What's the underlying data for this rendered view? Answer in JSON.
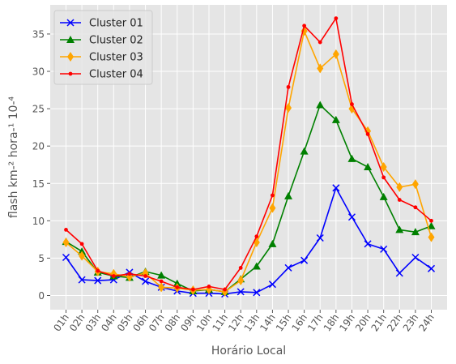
{
  "chart_data": {
    "type": "line",
    "xlabel": "Horário Local",
    "ylabel": "flash km-² hora-¹ 10-⁴",
    "categories": [
      "01h",
      "02h",
      "03h",
      "04h",
      "05h",
      "06h",
      "07h",
      "08h",
      "09h",
      "10h",
      "11h",
      "12h",
      "13h",
      "14h",
      "15h",
      "16h",
      "17h",
      "18h",
      "19h",
      "20h",
      "21h",
      "22h",
      "23h",
      "24h"
    ],
    "ylim": [
      -1.9,
      38.9
    ],
    "yticks": [
      0,
      5,
      10,
      15,
      20,
      25,
      30,
      35
    ],
    "grid": true,
    "legend_position": "top-left",
    "series": [
      {
        "name": "Cluster 01",
        "color": "#0000ff",
        "marker": "x",
        "values": [
          5.1,
          2.1,
          2.0,
          2.1,
          3.1,
          1.9,
          1.1,
          0.6,
          0.3,
          0.3,
          0.2,
          0.5,
          0.4,
          1.5,
          3.7,
          4.7,
          7.7,
          14.4,
          10.5,
          6.9,
          6.2,
          3.0,
          5.1,
          3.6
        ]
      },
      {
        "name": "Cluster 02",
        "color": "#008000",
        "marker": "triangle",
        "values": [
          7.2,
          5.9,
          3.1,
          2.6,
          2.4,
          3.2,
          2.7,
          1.6,
          0.6,
          0.8,
          0.5,
          2.2,
          3.9,
          6.9,
          13.3,
          19.3,
          25.5,
          23.5,
          18.3,
          17.2,
          13.2,
          8.8,
          8.5,
          9.3
        ]
      },
      {
        "name": "Cluster 03",
        "color": "#ffa500",
        "marker": "thin-diamond",
        "values": [
          7.1,
          5.3,
          3.2,
          2.9,
          2.5,
          3.0,
          1.1,
          1.0,
          0.7,
          0.8,
          0.5,
          2.0,
          7.1,
          11.7,
          25.1,
          35.4,
          30.4,
          32.3,
          25.0,
          22.0,
          17.2,
          14.5,
          14.9,
          7.8
        ]
      },
      {
        "name": "Cluster 04",
        "color": "#ff0000",
        "marker": "point",
        "values": [
          8.8,
          6.9,
          3.3,
          2.6,
          2.9,
          2.6,
          1.9,
          1.1,
          0.8,
          1.2,
          0.8,
          3.7,
          7.9,
          13.4,
          27.9,
          36.1,
          33.9,
          37.1,
          25.6,
          21.6,
          15.8,
          12.8,
          11.8,
          10.0
        ]
      }
    ]
  }
}
